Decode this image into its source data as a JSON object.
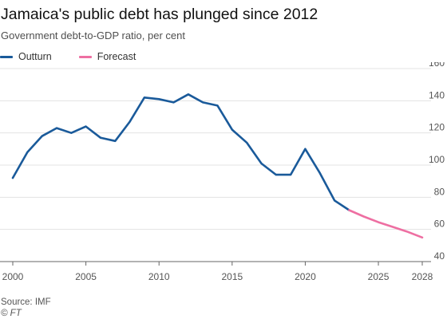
{
  "header": {
    "title": "Jamaica's public debt has plunged since 2012",
    "subtitle": "Government debt-to-GDP ratio, per cent"
  },
  "legend": [
    {
      "label": "Outturn",
      "color": "#1a5a9a"
    },
    {
      "label": "Forecast",
      "color": "#ee6fa2"
    }
  ],
  "footer": {
    "source": "Source: IMF",
    "credit": "© FT"
  },
  "chart_data": {
    "type": "line",
    "ylim": [
      40,
      160
    ],
    "yticks": [
      40,
      60,
      80,
      100,
      120,
      140,
      160
    ],
    "xlim": [
      2000,
      2028
    ],
    "xticks": [
      2000,
      2005,
      2010,
      2015,
      2020,
      2025,
      2028
    ],
    "grid": true,
    "legend_position": "top-left",
    "series": [
      {
        "name": "Outturn",
        "color": "#1a5a9a",
        "x": [
          2000,
          2001,
          2002,
          2003,
          2004,
          2005,
          2006,
          2007,
          2008,
          2009,
          2010,
          2011,
          2012,
          2013,
          2014,
          2015,
          2016,
          2017,
          2018,
          2019,
          2020,
          2021,
          2022,
          2023
        ],
        "values": [
          92,
          108,
          118,
          123,
          120,
          124,
          117,
          115,
          127,
          142,
          141,
          139,
          144,
          139,
          137,
          122,
          114,
          101,
          94,
          94,
          110,
          95,
          78,
          72
        ]
      },
      {
        "name": "Forecast",
        "color": "#ee6fa2",
        "x": [
          2023,
          2024,
          2025,
          2026,
          2027,
          2028
        ],
        "values": [
          72,
          68,
          64.5,
          61.5,
          58.5,
          55
        ]
      }
    ]
  }
}
